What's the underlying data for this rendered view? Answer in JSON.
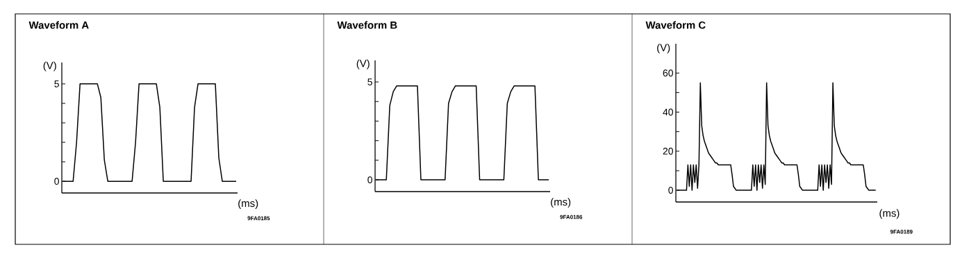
{
  "chart_data": [
    {
      "type": "line",
      "title": "Waveform A",
      "xlabel": "(ms)",
      "ylabel": "(V)",
      "annotations": [
        "9FA0185"
      ],
      "tick_labels": "y",
      "color": "#000000",
      "ylim": [
        -0.6,
        6.1
      ],
      "yticks": [
        0,
        {
          "value": 1,
          "label": null
        },
        {
          "value": 2,
          "label": null
        },
        {
          "value": 3,
          "label": null
        },
        {
          "value": 4,
          "label": null
        },
        5
      ],
      "categories": [
        null,
        null,
        null,
        null,
        null,
        null,
        null,
        null,
        null,
        null,
        null,
        null,
        null,
        null,
        null,
        null,
        null,
        null,
        null,
        null,
        null,
        null,
        null,
        null,
        null,
        null,
        null,
        null,
        null,
        null,
        null,
        null,
        null,
        null,
        null,
        null,
        null,
        null,
        null,
        null,
        null,
        null,
        null,
        null,
        null,
        null,
        null,
        null,
        null,
        null,
        null
      ],
      "values": [
        0,
        0,
        0,
        0,
        2,
        5,
        5,
        5,
        5,
        5,
        5,
        4.3,
        1.1,
        0,
        0,
        0,
        0,
        0,
        0,
        0,
        0,
        2,
        5,
        5,
        5,
        5,
        5,
        5,
        3.8,
        0,
        0,
        0,
        0,
        0,
        0,
        0,
        0,
        0,
        3.8,
        5,
        5,
        5,
        5,
        5,
        5,
        1.2,
        0,
        0,
        0,
        0,
        0
      ]
    },
    {
      "type": "line",
      "title": "Waveform B",
      "xlabel": "(ms)",
      "ylabel": "(V)",
      "annotations": [
        "9FA0186"
      ],
      "tick_labels": "y",
      "color": "#000000",
      "ylim": [
        -0.6,
        6.1
      ],
      "yticks": [
        0,
        {
          "value": 1,
          "label": null
        },
        {
          "value": 2,
          "label": null
        },
        {
          "value": 3,
          "label": null
        },
        {
          "value": 4,
          "label": null
        },
        5
      ],
      "categories": [
        null,
        null,
        null,
        null,
        null,
        null,
        null,
        null,
        null,
        null,
        null,
        null,
        null,
        null,
        null,
        null,
        null,
        null,
        null,
        null,
        null,
        null,
        null,
        null,
        null,
        null,
        null,
        null,
        null,
        null,
        null,
        null,
        null,
        null,
        null,
        null,
        null,
        null,
        null,
        null,
        null,
        null,
        null,
        null,
        null,
        null,
        null,
        null,
        null,
        null,
        null
      ],
      "values": [
        0,
        0,
        0,
        0,
        3.8,
        4.5,
        4.8,
        4.8,
        4.8,
        4.8,
        4.8,
        4.8,
        4.8,
        0,
        0,
        0,
        0,
        0,
        0,
        0,
        0,
        3.9,
        4.5,
        4.8,
        4.8,
        4.8,
        4.8,
        4.8,
        4.8,
        4.8,
        0,
        0,
        0,
        0,
        0,
        0,
        0,
        0,
        3.9,
        4.5,
        4.8,
        4.8,
        4.8,
        4.8,
        4.8,
        4.8,
        4.8,
        0,
        0,
        0,
        0
      ]
    },
    {
      "type": "line",
      "title": "Waveform C",
      "xlabel": "(ms)",
      "ylabel": "(V)",
      "annotations": [
        "9FA0189"
      ],
      "tick_labels": "y",
      "color": "#000000",
      "ylim": [
        -6,
        75
      ],
      "yticks": [
        0,
        {
          "value": 10,
          "label": null
        },
        20,
        {
          "value": 30,
          "label": null
        },
        40,
        {
          "value": 50,
          "label": null
        },
        60
      ],
      "categories": [
        null,
        null,
        null,
        null,
        null,
        null,
        null,
        null,
        null,
        null,
        null,
        null,
        null,
        null,
        null,
        null,
        null,
        null,
        null,
        null,
        null,
        null,
        null,
        null,
        null,
        null,
        null,
        null,
        null,
        null,
        null,
        null,
        null,
        null,
        null,
        null,
        null,
        null,
        null,
        null,
        null,
        null,
        null,
        null,
        null,
        null,
        null,
        null,
        null,
        null,
        null,
        null,
        null,
        null,
        null,
        null,
        null,
        null,
        null,
        null,
        null,
        null,
        null,
        null,
        null,
        null,
        null,
        null,
        null,
        null,
        null,
        null,
        null,
        null,
        null,
        null,
        null,
        null,
        null,
        null,
        null,
        null,
        null,
        null,
        null,
        null,
        null,
        null,
        null,
        null,
        null,
        null,
        null,
        null,
        null,
        null,
        null,
        null,
        null,
        null,
        null,
        null,
        null,
        null,
        null,
        null,
        null,
        null,
        null,
        null,
        null,
        null,
        null,
        null,
        null,
        null,
        null,
        null,
        null,
        null,
        null,
        null,
        null,
        null,
        null,
        null,
        null,
        null,
        null,
        null,
        null,
        null,
        null,
        null,
        null,
        null,
        null,
        null,
        null,
        null,
        null,
        null,
        null,
        null,
        null
      ],
      "values": [
        0,
        0,
        0,
        0,
        0,
        0,
        0,
        0,
        13,
        2,
        13,
        0,
        13,
        4,
        13,
        1,
        13,
        55,
        33,
        28,
        25,
        23,
        21,
        19,
        18,
        17,
        16,
        15,
        14,
        14,
        13,
        13,
        13,
        13,
        13,
        13,
        13,
        13,
        13,
        13,
        8,
        2,
        1,
        0,
        0,
        0,
        0,
        0,
        0,
        0,
        0,
        0,
        0,
        0,
        0,
        13,
        2,
        13,
        0,
        13,
        4,
        13,
        1,
        13,
        3,
        55,
        33,
        28,
        25,
        23,
        21,
        19,
        18,
        17,
        16,
        15,
        14,
        14,
        13,
        13,
        13,
        13,
        13,
        13,
        13,
        13,
        13,
        13,
        8,
        2,
        1,
        0,
        0,
        0,
        0,
        0,
        0,
        0,
        0,
        0,
        0,
        0,
        0,
        13,
        2,
        13,
        0,
        13,
        4,
        13,
        1,
        13,
        3,
        55,
        33,
        28,
        25,
        23,
        21,
        19,
        18,
        17,
        16,
        15,
        14,
        14,
        13,
        13,
        13,
        13,
        13,
        13,
        13,
        13,
        13,
        13,
        8,
        2,
        1,
        0,
        0,
        0,
        0,
        0,
        0
      ]
    }
  ]
}
